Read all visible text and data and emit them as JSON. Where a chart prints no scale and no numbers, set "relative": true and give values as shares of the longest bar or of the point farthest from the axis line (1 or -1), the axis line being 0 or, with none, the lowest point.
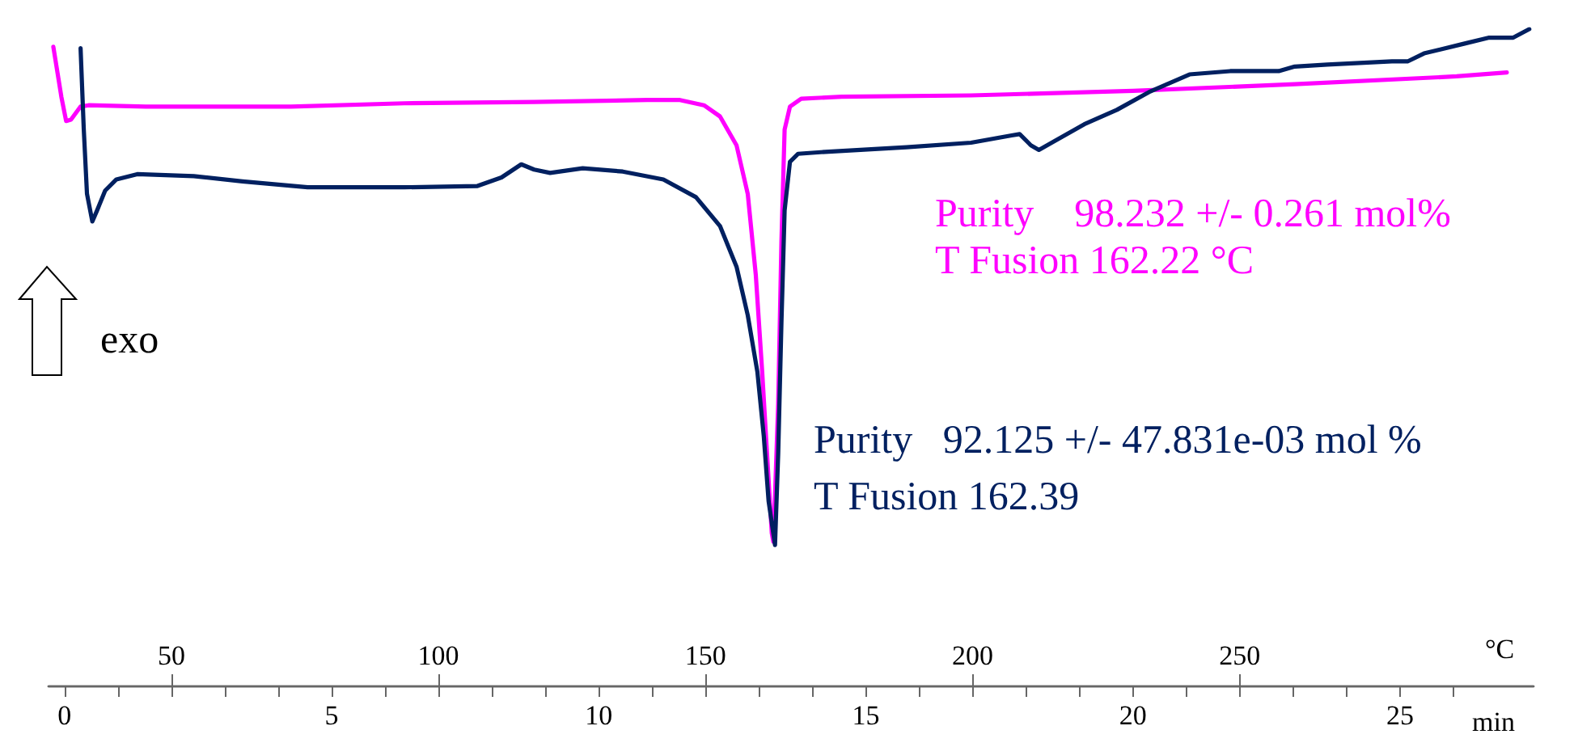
{
  "chart_data": {
    "type": "line",
    "relative": true,
    "xlabel": "min",
    "x2label": "°C",
    "xlim": [
      -0.3,
      27.5
    ],
    "x2lim": [
      27,
      305
    ],
    "xticks": [
      0,
      {
        "value": 1,
        "label": null
      },
      {
        "value": 2,
        "label": null
      },
      {
        "value": 3,
        "label": null
      },
      {
        "value": 4,
        "label": null
      },
      5,
      {
        "value": 6,
        "label": null
      },
      {
        "value": 7,
        "label": null
      },
      {
        "value": 8,
        "label": null
      },
      {
        "value": 9,
        "label": null
      },
      10,
      {
        "value": 11,
        "label": null
      },
      {
        "value": 12,
        "label": null
      },
      {
        "value": 13,
        "label": null
      },
      {
        "value": 14,
        "label": null
      },
      15,
      {
        "value": 16,
        "label": null
      },
      {
        "value": 17,
        "label": null
      },
      {
        "value": 18,
        "label": null
      },
      {
        "value": 19,
        "label": null
      },
      20,
      {
        "value": 21,
        "label": null
      },
      {
        "value": 22,
        "label": null
      },
      {
        "value": 23,
        "label": null
      },
      {
        "value": 24,
        "label": null
      },
      25,
      {
        "value": 26,
        "label": null
      }
    ],
    "x2ticks": [
      50,
      100,
      150,
      200,
      250
    ],
    "grid": false,
    "marker": "none",
    "line_style": "solid",
    "series": [
      {
        "color": "#ff00ff",
        "x": [
          -0.21,
          -0.06,
          0.03,
          0.12,
          0.3,
          0.45,
          1.52,
          4.24,
          6.36,
          8.79,
          10.91,
          11.52,
          11.97,
          12.27,
          12.58,
          12.79,
          12.94,
          13.06,
          13.15,
          13.24,
          13.27,
          13.36,
          13.42,
          13.48,
          13.58,
          13.79,
          14.55,
          16.97,
          20.0,
          23.03,
          26.06,
          27.0
        ],
        "values": [
          0.973,
          0.897,
          0.86,
          0.862,
          0.882,
          0.884,
          0.882,
          0.882,
          0.887,
          0.889,
          0.892,
          0.892,
          0.884,
          0.867,
          0.823,
          0.749,
          0.626,
          0.478,
          0.354,
          0.232,
          0.219,
          0.429,
          0.675,
          0.847,
          0.882,
          0.894,
          0.897,
          0.899,
          0.906,
          0.916,
          0.928,
          0.934
        ]
      },
      {
        "color": "#002060",
        "x": [
          0.3,
          0.36,
          0.42,
          0.52,
          0.61,
          0.76,
          0.97,
          1.36,
          2.42,
          3.33,
          4.55,
          6.36,
          7.73,
          8.18,
          8.55,
          8.79,
          9.09,
          9.7,
          10.45,
          11.21,
          11.82,
          12.27,
          12.58,
          12.79,
          12.97,
          13.09,
          13.18,
          13.3,
          13.36,
          13.42,
          13.48,
          13.58,
          13.73,
          14.24,
          15.76,
          16.97,
          17.73,
          17.88,
          18.09,
          18.24,
          18.48,
          19.09,
          19.7,
          20.3,
          21.06,
          21.82,
          22.73,
          23.03,
          23.64,
          24.85,
          25.15,
          25.45,
          26.21,
          26.67,
          27.12,
          27.42
        ],
        "values": [
          0.971,
          0.847,
          0.749,
          0.707,
          0.724,
          0.754,
          0.771,
          0.779,
          0.776,
          0.768,
          0.759,
          0.759,
          0.761,
          0.774,
          0.794,
          0.786,
          0.781,
          0.788,
          0.783,
          0.771,
          0.744,
          0.7,
          0.638,
          0.564,
          0.478,
          0.38,
          0.281,
          0.214,
          0.354,
          0.552,
          0.724,
          0.798,
          0.81,
          0.813,
          0.82,
          0.827,
          0.838,
          0.84,
          0.823,
          0.816,
          0.827,
          0.855,
          0.877,
          0.904,
          0.931,
          0.936,
          0.936,
          0.943,
          0.946,
          0.951,
          0.951,
          0.963,
          0.978,
          0.987,
          0.987,
          1.0
        ]
      }
    ],
    "annotations": [
      "Purity    98.232 +/- 0.261 mol%",
      "T Fusion 162.22 °C",
      "Purity   92.125 +/- 47.831e-03 mol %",
      "T Fusion 162.39",
      "exo"
    ]
  }
}
